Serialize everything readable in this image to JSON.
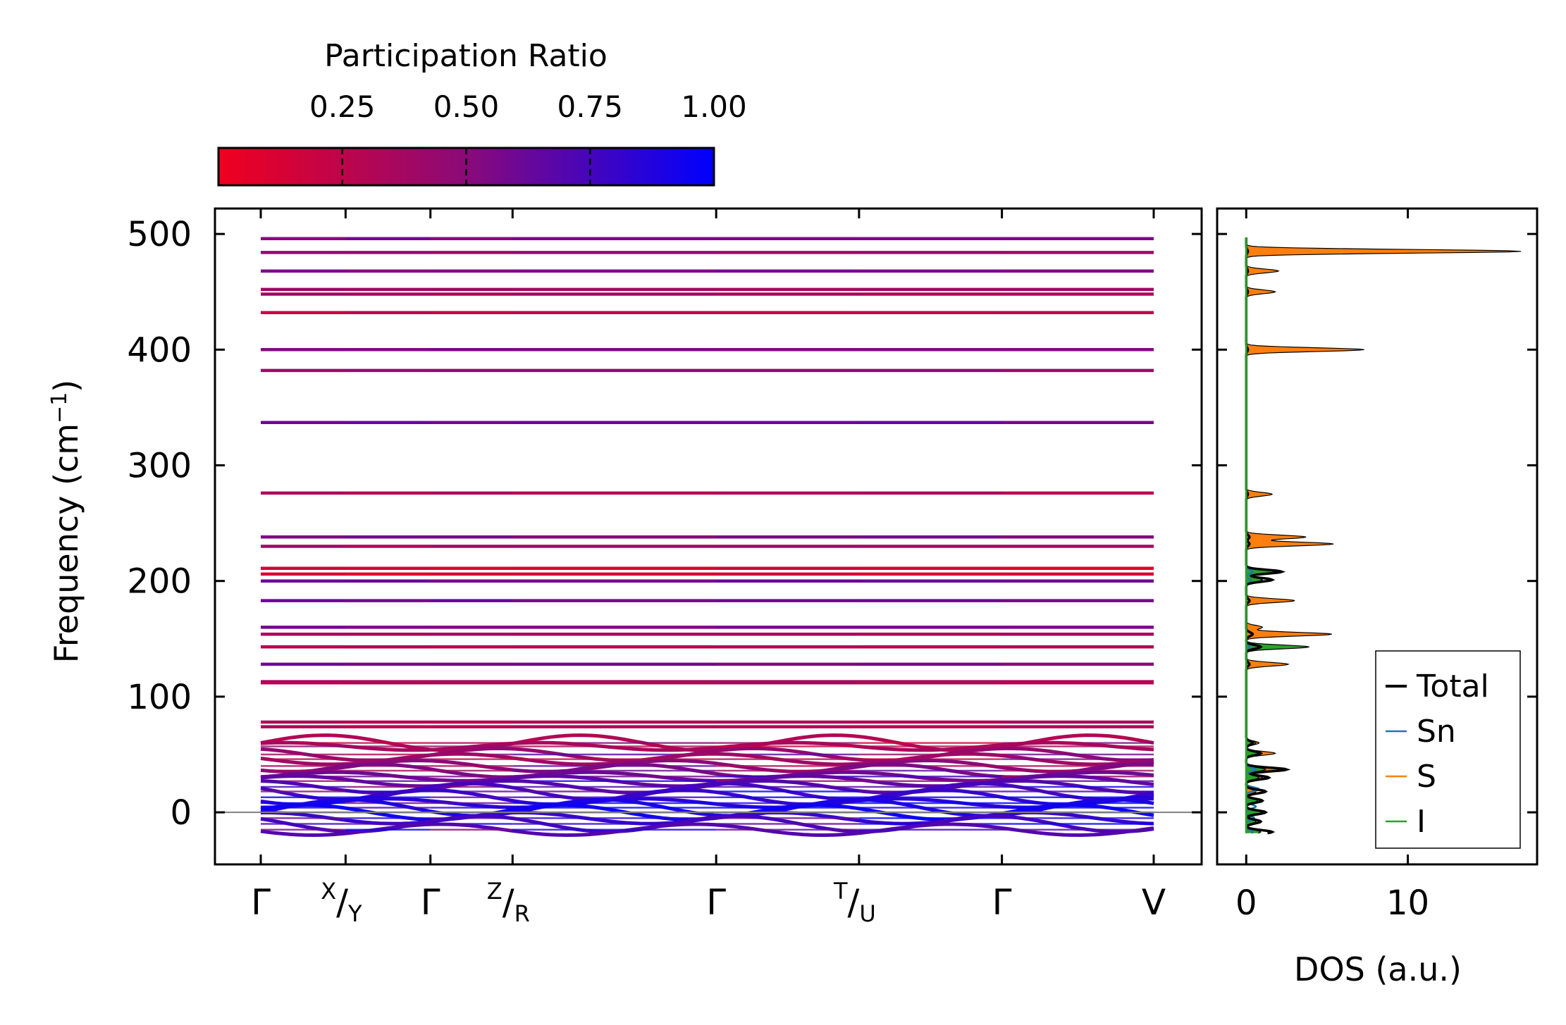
{
  "colorbar": {
    "label": "Participation Ratio",
    "range": [
      0.0,
      1.0
    ],
    "ticks": [
      0.25,
      0.5,
      0.75,
      1.0
    ],
    "tick_labels": [
      "0.25",
      "0.50",
      "0.75",
      "1.00"
    ],
    "colors": {
      "low": "#f0001e",
      "mid": "#8a0a78",
      "high": "#0000ff"
    }
  },
  "chart_data": [
    {
      "type": "line",
      "title": "",
      "xlabel": "",
      "ylabel": "Frequency (cm",
      "ylabel_sup": "−1",
      "ylabel_tail": ")",
      "ylim": [
        -45,
        522
      ],
      "yticks": [
        0,
        100,
        200,
        300,
        400,
        500
      ],
      "ytick_labels": [
        "0",
        "100",
        "200",
        "300",
        "400",
        "500"
      ],
      "kpath": [
        {
          "pos": 0.0,
          "label": "Γ"
        },
        {
          "pos": 0.095,
          "sup": "X",
          "main": "/Y"
        },
        {
          "pos": 0.19,
          "label": "Γ"
        },
        {
          "pos": 0.282,
          "sup": "Z",
          "main": "/R"
        },
        {
          "pos": 0.51,
          "label": "Γ"
        },
        {
          "pos": 0.67,
          "sup": "T",
          "main": "/U"
        },
        {
          "pos": 0.83,
          "label": "Γ"
        },
        {
          "pos": 1.0,
          "label": "V"
        }
      ],
      "zero_line": 0,
      "series": [
        {
          "name": "optical",
          "bands": [
            {
              "f": 496,
              "pr": 0.55
            },
            {
              "f": 484,
              "pr": 0.4
            },
            {
              "f": 468,
              "pr": 0.55
            },
            {
              "f": 452,
              "pr": 0.38
            },
            {
              "f": 448,
              "pr": 0.35
            },
            {
              "f": 432,
              "pr": 0.25
            },
            {
              "f": 400,
              "pr": 0.55
            },
            {
              "f": 382,
              "pr": 0.42
            },
            {
              "f": 337,
              "pr": 0.6
            },
            {
              "f": 276,
              "pr": 0.3
            },
            {
              "f": 238,
              "pr": 0.55
            },
            {
              "f": 230,
              "pr": 0.35
            },
            {
              "f": 211,
              "pr": 0.12
            },
            {
              "f": 206,
              "pr": 0.1
            },
            {
              "f": 200,
              "pr": 0.6
            },
            {
              "f": 183,
              "pr": 0.6
            },
            {
              "f": 160,
              "pr": 0.55
            },
            {
              "f": 154,
              "pr": 0.35
            },
            {
              "f": 143,
              "pr": 0.3
            },
            {
              "f": 128,
              "pr": 0.55
            },
            {
              "f": 113,
              "pr": 0.35
            },
            {
              "f": 112,
              "pr": 0.3
            },
            {
              "f": 78,
              "pr": 0.3
            },
            {
              "f": 74,
              "pr": 0.3
            }
          ]
        },
        {
          "name": "low_frequency",
          "bands": [
            {
              "f": 60,
              "pr": 0.3
            },
            {
              "f": 57,
              "pr": 0.35
            },
            {
              "f": 50,
              "pr": 0.45
            },
            {
              "f": 46,
              "pr": 0.4
            },
            {
              "f": 40,
              "pr": 0.5
            },
            {
              "f": 36,
              "pr": 0.55
            },
            {
              "f": 31,
              "pr": 0.6
            },
            {
              "f": 27,
              "pr": 0.65
            },
            {
              "f": 22,
              "pr": 0.7
            },
            {
              "f": 18,
              "pr": 0.75
            },
            {
              "f": 13,
              "pr": 0.8
            },
            {
              "f": 8,
              "pr": 0.85
            },
            {
              "f": 4,
              "pr": 0.9
            },
            {
              "f": 0,
              "pr": 0.95
            },
            {
              "f": -5,
              "pr": 0.8
            },
            {
              "f": -10,
              "pr": 0.75
            },
            {
              "f": -15,
              "pr": 0.7
            }
          ]
        }
      ]
    },
    {
      "type": "line",
      "title": "",
      "xlabel": "DOS (a.u.)",
      "ylabel": "",
      "xlim": [
        -1.8,
        18.0
      ],
      "ylim": [
        -45,
        522
      ],
      "xticks": [
        0,
        10
      ],
      "xtick_labels": [
        "0",
        "10"
      ],
      "legend_position": "bottom-right",
      "series": [
        {
          "name": "Total",
          "color": "#000000",
          "peaks": [
            [
              496,
              0.0
            ],
            [
              485,
              0.1
            ],
            [
              468,
              0.1
            ],
            [
              450,
              0.1
            ],
            [
              400,
              0.1
            ],
            [
              275,
              0.1
            ],
            [
              238,
              0.2
            ],
            [
              232,
              0.2
            ],
            [
              208,
              2.2
            ],
            [
              201,
              1.6
            ],
            [
              183,
              0.2
            ],
            [
              154,
              0.4
            ],
            [
              143,
              0.9
            ],
            [
              128,
              0.2
            ],
            [
              60,
              0.4
            ],
            [
              51,
              0.9
            ],
            [
              37,
              2.5
            ],
            [
              30,
              1.4
            ],
            [
              18,
              1.2
            ],
            [
              10,
              1.0
            ],
            [
              0,
              1.2
            ],
            [
              -8,
              0.9
            ],
            [
              -17,
              1.6
            ]
          ]
        },
        {
          "name": "Sn",
          "color": "#1f77b4",
          "peaks": [
            [
              208,
              0.4
            ],
            [
              200,
              0.3
            ],
            [
              143,
              0.2
            ],
            [
              37,
              0.6
            ],
            [
              20,
              0.8
            ],
            [
              5,
              0.6
            ],
            [
              -5,
              0.5
            ],
            [
              -17,
              0.4
            ]
          ]
        },
        {
          "name": "S",
          "color": "#ff7f0e",
          "peaks": [
            [
              485,
              17.0
            ],
            [
              468,
              2.0
            ],
            [
              450,
              1.8
            ],
            [
              400,
              7.3
            ],
            [
              275,
              1.6
            ],
            [
              238,
              3.7
            ],
            [
              232,
              5.4
            ],
            [
              183,
              3.0
            ],
            [
              160,
              1.0
            ],
            [
              154,
              5.3
            ],
            [
              143,
              1.0
            ],
            [
              128,
              2.6
            ],
            [
              60,
              0.8
            ],
            [
              51,
              1.8
            ],
            [
              37,
              2.0
            ],
            [
              30,
              1.0
            ],
            [
              18,
              0.6
            ]
          ]
        },
        {
          "name": "I",
          "color": "#2ca02c",
          "peaks": [
            [
              208,
              1.8
            ],
            [
              201,
              1.0
            ],
            [
              143,
              3.9
            ],
            [
              60,
              0.6
            ],
            [
              51,
              1.0
            ],
            [
              37,
              1.2
            ],
            [
              30,
              0.8
            ],
            [
              10,
              0.7
            ],
            [
              0,
              1.0
            ],
            [
              -8,
              0.6
            ],
            [
              -17,
              0.9
            ]
          ]
        }
      ]
    }
  ]
}
